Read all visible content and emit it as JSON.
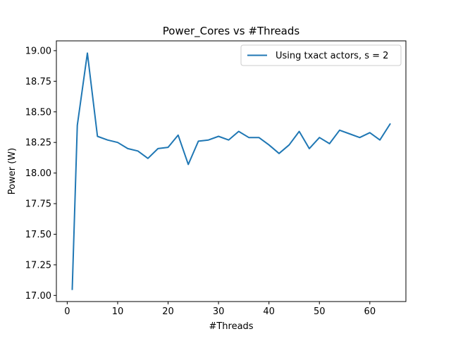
{
  "chart_data": {
    "type": "line",
    "title": "Power_Cores vs #Threads",
    "xlabel": "#Threads",
    "ylabel": "Power (W)",
    "xlim": [
      -2.15,
      67.15
    ],
    "ylim": [
      16.95,
      19.08
    ],
    "x_ticks": [
      0,
      10,
      20,
      30,
      40,
      50,
      60
    ],
    "y_ticks": [
      17.0,
      17.25,
      17.5,
      17.75,
      18.0,
      18.25,
      18.5,
      18.75,
      19.0
    ],
    "x_tick_labels": [
      "0",
      "10",
      "20",
      "30",
      "40",
      "50",
      "60"
    ],
    "y_tick_labels": [
      "17.00",
      "17.25",
      "17.50",
      "17.75",
      "18.00",
      "18.25",
      "18.50",
      "18.75",
      "19.00"
    ],
    "grid": false,
    "legend_position": "top-right",
    "series": [
      {
        "name": "Using txact actors, s = 2",
        "color": "#1f77b4",
        "x": [
          1,
          2,
          4,
          6,
          8,
          10,
          12,
          14,
          16,
          18,
          20,
          22,
          24,
          26,
          28,
          30,
          32,
          34,
          36,
          38,
          40,
          42,
          44,
          46,
          48,
          50,
          52,
          54,
          56,
          58,
          60,
          62,
          64
        ],
        "y": [
          17.05,
          18.39,
          18.98,
          18.3,
          18.27,
          18.25,
          18.2,
          18.18,
          18.12,
          18.2,
          18.21,
          18.31,
          18.07,
          18.26,
          18.27,
          18.3,
          18.27,
          18.34,
          18.29,
          18.29,
          18.23,
          18.16,
          18.23,
          18.34,
          18.2,
          18.29,
          18.24,
          18.35,
          18.32,
          18.29,
          18.33,
          18.27,
          18.4
        ]
      }
    ]
  }
}
